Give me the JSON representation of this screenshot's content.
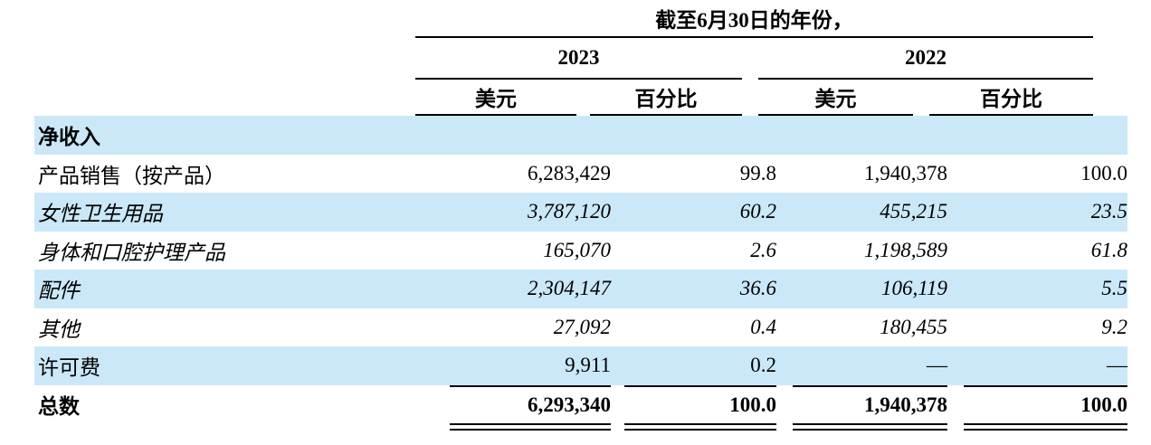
{
  "table": {
    "header": {
      "period_title": "截至6月30日的年份，",
      "year_groups": [
        {
          "year": "2023",
          "col1": "美元",
          "col2": "百分比"
        },
        {
          "year": "2022",
          "col1": "美元",
          "col2": "百分比"
        }
      ]
    },
    "section_label": "净收入",
    "rows": [
      {
        "label": "产品销售（按产品）",
        "style": "regular",
        "values": [
          "6,283,429",
          "99.8",
          "1,940,378",
          "100.0"
        ]
      },
      {
        "label": "女性卫生用品",
        "style": "italic",
        "values": [
          "3,787,120",
          "60.2",
          "455,215",
          "23.5"
        ]
      },
      {
        "label": "身体和口腔护理产品",
        "style": "italic",
        "values": [
          "165,070",
          "2.6",
          "1,198,589",
          "61.8"
        ]
      },
      {
        "label": "配件",
        "style": "italic",
        "values": [
          "2,304,147",
          "36.6",
          "106,119",
          "5.5"
        ]
      },
      {
        "label": "其他",
        "style": "italic",
        "values": [
          "27,092",
          "0.4",
          "180,455",
          "9.2"
        ]
      },
      {
        "label": "许可费",
        "style": "regular",
        "values": [
          "9,911",
          "0.2",
          "—",
          "—"
        ]
      }
    ],
    "total_row": {
      "label": "总数",
      "values": [
        "6,293,340",
        "100.0",
        "1,940,378",
        "100.0"
      ]
    },
    "colors": {
      "stripe": "#cbe8f8",
      "text": "#000000",
      "rule": "#000000"
    }
  }
}
